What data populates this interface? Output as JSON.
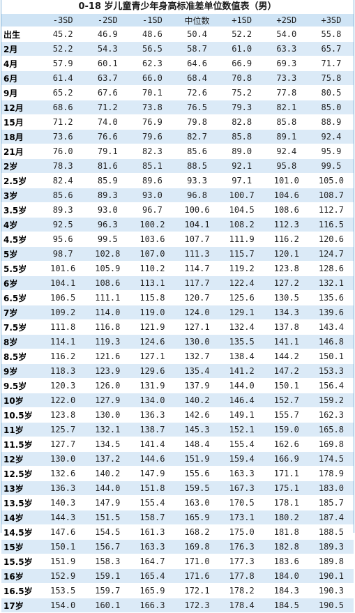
{
  "title": "0-18 岁儿童青少年身高标准差单位数值表（男）",
  "headers": [
    "",
    "-3SD",
    "-2SD",
    "-1SD",
    "中位数",
    "+1SD",
    "+2SD",
    "+3SD"
  ],
  "rows": [
    {
      "age": "出生",
      "values": [
        "45.2",
        "46.9",
        "48.6",
        "50.4",
        "52.2",
        "54.0",
        "55.8"
      ]
    },
    {
      "age": "2月",
      "values": [
        "52.2",
        "54.3",
        "56.5",
        "58.7",
        "61.0",
        "63.3",
        "65.7"
      ]
    },
    {
      "age": "4月",
      "values": [
        "57.9",
        "60.1",
        "62.3",
        "64.6",
        "66.9",
        "69.3",
        "71.7"
      ]
    },
    {
      "age": "6月",
      "values": [
        "61.4",
        "63.7",
        "66.0",
        "68.4",
        "70.8",
        "73.3",
        "75.8"
      ]
    },
    {
      "age": "9月",
      "values": [
        "65.2",
        "67.6",
        "70.1",
        "72.6",
        "75.2",
        "77.8",
        "80.5"
      ]
    },
    {
      "age": "12月",
      "values": [
        "68.6",
        "71.2",
        "73.8",
        "76.5",
        "79.3",
        "82.1",
        "85.0"
      ]
    },
    {
      "age": "15月",
      "values": [
        "71.2",
        "74.0",
        "76.9",
        "79.8",
        "82.8",
        "85.8",
        "88.9"
      ]
    },
    {
      "age": "18月",
      "values": [
        "73.6",
        "76.6",
        "79.6",
        "82.7",
        "85.8",
        "89.1",
        "92.4"
      ]
    },
    {
      "age": "21月",
      "values": [
        "76.0",
        "79.1",
        "82.3",
        "85.6",
        "89.0",
        "92.4",
        "95.9"
      ]
    },
    {
      "age": "2岁",
      "values": [
        "78.3",
        "81.6",
        "85.1",
        "88.5",
        "92.1",
        "95.8",
        "99.5"
      ]
    },
    {
      "age": "2.5岁",
      "values": [
        "82.4",
        "85.9",
        "89.6",
        "93.3",
        "97.1",
        "101.0",
        "105.0"
      ]
    },
    {
      "age": "3岁",
      "values": [
        "85.6",
        "89.3",
        "93.0",
        "96.8",
        "100.7",
        "104.6",
        "108.7"
      ]
    },
    {
      "age": "3.5岁",
      "values": [
        "89.3",
        "93.0",
        "96.7",
        "100.6",
        "104.5",
        "108.6",
        "112.7"
      ]
    },
    {
      "age": "4岁",
      "values": [
        "92.5",
        "96.3",
        "100.2",
        "104.1",
        "108.2",
        "112.3",
        "116.5"
      ]
    },
    {
      "age": "4.5岁",
      "values": [
        "95.6",
        "99.5",
        "103.6",
        "107.7",
        "111.9",
        "116.2",
        "120.6"
      ]
    },
    {
      "age": "5岁",
      "values": [
        "98.7",
        "102.8",
        "107.0",
        "111.3",
        "115.7",
        "120.1",
        "124.7"
      ]
    },
    {
      "age": "5.5岁",
      "values": [
        "101.6",
        "105.9",
        "110.2",
        "114.7",
        "119.2",
        "123.8",
        "128.6"
      ]
    },
    {
      "age": "6岁",
      "values": [
        "104.1",
        "108.6",
        "113.1",
        "117.7",
        "122.4",
        "127.2",
        "132.1"
      ]
    },
    {
      "age": "6.5岁",
      "values": [
        "106.5",
        "111.1",
        "115.8",
        "120.7",
        "125.6",
        "130.5",
        "135.6"
      ]
    },
    {
      "age": "7岁",
      "values": [
        "109.2",
        "114.0",
        "119.0",
        "124.0",
        "129.1",
        "134.3",
        "139.6"
      ]
    },
    {
      "age": "7.5岁",
      "values": [
        "111.8",
        "116.8",
        "121.9",
        "127.1",
        "132.4",
        "137.8",
        "143.4"
      ]
    },
    {
      "age": "8岁",
      "values": [
        "114.1",
        "119.3",
        "124.6",
        "130.0",
        "135.5",
        "141.1",
        "146.8"
      ]
    },
    {
      "age": "8.5岁",
      "values": [
        "116.2",
        "121.6",
        "127.1",
        "132.7",
        "138.4",
        "144.2",
        "150.1"
      ]
    },
    {
      "age": "9岁",
      "values": [
        "118.3",
        "123.9",
        "129.6",
        "135.4",
        "141.2",
        "147.2",
        "153.3"
      ]
    },
    {
      "age": "9.5岁",
      "values": [
        "120.3",
        "126.0",
        "131.9",
        "137.9",
        "144.0",
        "150.1",
        "156.4"
      ]
    },
    {
      "age": "10岁",
      "values": [
        "122.0",
        "127.9",
        "134.0",
        "140.2",
        "146.4",
        "152.7",
        "159.2"
      ]
    },
    {
      "age": "10.5岁",
      "values": [
        "123.8",
        "130.0",
        "136.3",
        "142.6",
        "149.1",
        "155.7",
        "162.3"
      ]
    },
    {
      "age": "11岁",
      "values": [
        "125.7",
        "132.1",
        "138.7",
        "145.3",
        "152.1",
        "159.0",
        "165.8"
      ]
    },
    {
      "age": "11.5岁",
      "values": [
        "127.7",
        "134.5",
        "141.4",
        "148.4",
        "155.4",
        "162.6",
        "169.8"
      ]
    },
    {
      "age": "12岁",
      "values": [
        "130.0",
        "137.2",
        "144.6",
        "151.9",
        "159.4",
        "166.9",
        "174.5"
      ]
    },
    {
      "age": "12.5岁",
      "values": [
        "132.6",
        "140.2",
        "147.9",
        "155.6",
        "163.3",
        "171.1",
        "178.9"
      ]
    },
    {
      "age": "13岁",
      "values": [
        "136.3",
        "144.0",
        "151.8",
        "159.5",
        "167.3",
        "175.1",
        "183.0"
      ]
    },
    {
      "age": "13.5岁",
      "values": [
        "140.3",
        "147.9",
        "155.4",
        "163.0",
        "170.5",
        "178.1",
        "185.7"
      ]
    },
    {
      "age": "14岁",
      "values": [
        "144.3",
        "151.5",
        "158.7",
        "165.9",
        "173.1",
        "180.2",
        "187.4"
      ]
    },
    {
      "age": "14.5岁",
      "values": [
        "147.6",
        "154.5",
        "161.3",
        "168.2",
        "175.0",
        "181.8",
        "188.5"
      ]
    },
    {
      "age": "15岁",
      "values": [
        "150.1",
        "156.7",
        "163.3",
        "169.8",
        "176.3",
        "182.8",
        "189.3"
      ]
    },
    {
      "age": "15.5岁",
      "values": [
        "151.9",
        "158.3",
        "164.7",
        "171.0",
        "177.3",
        "183.6",
        "189.8"
      ]
    },
    {
      "age": "16岁",
      "values": [
        "152.9",
        "159.1",
        "165.4",
        "171.6",
        "177.8",
        "184.0",
        "190.1"
      ]
    },
    {
      "age": "16.5岁",
      "values": [
        "153.5",
        "159.7",
        "165.9",
        "172.1",
        "178.2",
        "184.3",
        "190.3"
      ]
    },
    {
      "age": "17岁",
      "values": [
        "154.0",
        "160.1",
        "166.3",
        "172.3",
        "178.4",
        "184.5",
        "190.5"
      ]
    }
  ]
}
